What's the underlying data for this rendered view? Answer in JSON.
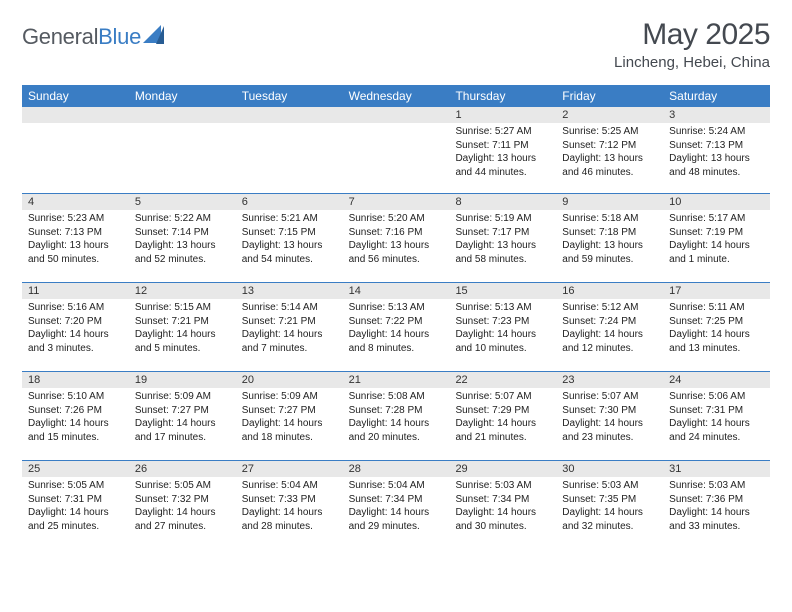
{
  "brand": {
    "word1": "General",
    "word2": "Blue"
  },
  "title": "May 2025",
  "location": "Lincheng, Hebei, China",
  "dow": [
    "Sunday",
    "Monday",
    "Tuesday",
    "Wednesday",
    "Thursday",
    "Friday",
    "Saturday"
  ],
  "colors": {
    "header_bg": "#3a7dc4",
    "band_bg": "#e8e8e8",
    "row_border": "#3a7dc4",
    "text": "#222222",
    "title_text": "#444950"
  },
  "weeks": [
    [
      {
        "n": "",
        "sr": "",
        "ss": "",
        "dl": ""
      },
      {
        "n": "",
        "sr": "",
        "ss": "",
        "dl": ""
      },
      {
        "n": "",
        "sr": "",
        "ss": "",
        "dl": ""
      },
      {
        "n": "",
        "sr": "",
        "ss": "",
        "dl": ""
      },
      {
        "n": "1",
        "sr": "Sunrise: 5:27 AM",
        "ss": "Sunset: 7:11 PM",
        "dl": "Daylight: 13 hours and 44 minutes."
      },
      {
        "n": "2",
        "sr": "Sunrise: 5:25 AM",
        "ss": "Sunset: 7:12 PM",
        "dl": "Daylight: 13 hours and 46 minutes."
      },
      {
        "n": "3",
        "sr": "Sunrise: 5:24 AM",
        "ss": "Sunset: 7:13 PM",
        "dl": "Daylight: 13 hours and 48 minutes."
      }
    ],
    [
      {
        "n": "4",
        "sr": "Sunrise: 5:23 AM",
        "ss": "Sunset: 7:13 PM",
        "dl": "Daylight: 13 hours and 50 minutes."
      },
      {
        "n": "5",
        "sr": "Sunrise: 5:22 AM",
        "ss": "Sunset: 7:14 PM",
        "dl": "Daylight: 13 hours and 52 minutes."
      },
      {
        "n": "6",
        "sr": "Sunrise: 5:21 AM",
        "ss": "Sunset: 7:15 PM",
        "dl": "Daylight: 13 hours and 54 minutes."
      },
      {
        "n": "7",
        "sr": "Sunrise: 5:20 AM",
        "ss": "Sunset: 7:16 PM",
        "dl": "Daylight: 13 hours and 56 minutes."
      },
      {
        "n": "8",
        "sr": "Sunrise: 5:19 AM",
        "ss": "Sunset: 7:17 PM",
        "dl": "Daylight: 13 hours and 58 minutes."
      },
      {
        "n": "9",
        "sr": "Sunrise: 5:18 AM",
        "ss": "Sunset: 7:18 PM",
        "dl": "Daylight: 13 hours and 59 minutes."
      },
      {
        "n": "10",
        "sr": "Sunrise: 5:17 AM",
        "ss": "Sunset: 7:19 PM",
        "dl": "Daylight: 14 hours and 1 minute."
      }
    ],
    [
      {
        "n": "11",
        "sr": "Sunrise: 5:16 AM",
        "ss": "Sunset: 7:20 PM",
        "dl": "Daylight: 14 hours and 3 minutes."
      },
      {
        "n": "12",
        "sr": "Sunrise: 5:15 AM",
        "ss": "Sunset: 7:21 PM",
        "dl": "Daylight: 14 hours and 5 minutes."
      },
      {
        "n": "13",
        "sr": "Sunrise: 5:14 AM",
        "ss": "Sunset: 7:21 PM",
        "dl": "Daylight: 14 hours and 7 minutes."
      },
      {
        "n": "14",
        "sr": "Sunrise: 5:13 AM",
        "ss": "Sunset: 7:22 PM",
        "dl": "Daylight: 14 hours and 8 minutes."
      },
      {
        "n": "15",
        "sr": "Sunrise: 5:13 AM",
        "ss": "Sunset: 7:23 PM",
        "dl": "Daylight: 14 hours and 10 minutes."
      },
      {
        "n": "16",
        "sr": "Sunrise: 5:12 AM",
        "ss": "Sunset: 7:24 PM",
        "dl": "Daylight: 14 hours and 12 minutes."
      },
      {
        "n": "17",
        "sr": "Sunrise: 5:11 AM",
        "ss": "Sunset: 7:25 PM",
        "dl": "Daylight: 14 hours and 13 minutes."
      }
    ],
    [
      {
        "n": "18",
        "sr": "Sunrise: 5:10 AM",
        "ss": "Sunset: 7:26 PM",
        "dl": "Daylight: 14 hours and 15 minutes."
      },
      {
        "n": "19",
        "sr": "Sunrise: 5:09 AM",
        "ss": "Sunset: 7:27 PM",
        "dl": "Daylight: 14 hours and 17 minutes."
      },
      {
        "n": "20",
        "sr": "Sunrise: 5:09 AM",
        "ss": "Sunset: 7:27 PM",
        "dl": "Daylight: 14 hours and 18 minutes."
      },
      {
        "n": "21",
        "sr": "Sunrise: 5:08 AM",
        "ss": "Sunset: 7:28 PM",
        "dl": "Daylight: 14 hours and 20 minutes."
      },
      {
        "n": "22",
        "sr": "Sunrise: 5:07 AM",
        "ss": "Sunset: 7:29 PM",
        "dl": "Daylight: 14 hours and 21 minutes."
      },
      {
        "n": "23",
        "sr": "Sunrise: 5:07 AM",
        "ss": "Sunset: 7:30 PM",
        "dl": "Daylight: 14 hours and 23 minutes."
      },
      {
        "n": "24",
        "sr": "Sunrise: 5:06 AM",
        "ss": "Sunset: 7:31 PM",
        "dl": "Daylight: 14 hours and 24 minutes."
      }
    ],
    [
      {
        "n": "25",
        "sr": "Sunrise: 5:05 AM",
        "ss": "Sunset: 7:31 PM",
        "dl": "Daylight: 14 hours and 25 minutes."
      },
      {
        "n": "26",
        "sr": "Sunrise: 5:05 AM",
        "ss": "Sunset: 7:32 PM",
        "dl": "Daylight: 14 hours and 27 minutes."
      },
      {
        "n": "27",
        "sr": "Sunrise: 5:04 AM",
        "ss": "Sunset: 7:33 PM",
        "dl": "Daylight: 14 hours and 28 minutes."
      },
      {
        "n": "28",
        "sr": "Sunrise: 5:04 AM",
        "ss": "Sunset: 7:34 PM",
        "dl": "Daylight: 14 hours and 29 minutes."
      },
      {
        "n": "29",
        "sr": "Sunrise: 5:03 AM",
        "ss": "Sunset: 7:34 PM",
        "dl": "Daylight: 14 hours and 30 minutes."
      },
      {
        "n": "30",
        "sr": "Sunrise: 5:03 AM",
        "ss": "Sunset: 7:35 PM",
        "dl": "Daylight: 14 hours and 32 minutes."
      },
      {
        "n": "31",
        "sr": "Sunrise: 5:03 AM",
        "ss": "Sunset: 7:36 PM",
        "dl": "Daylight: 14 hours and 33 minutes."
      }
    ]
  ]
}
